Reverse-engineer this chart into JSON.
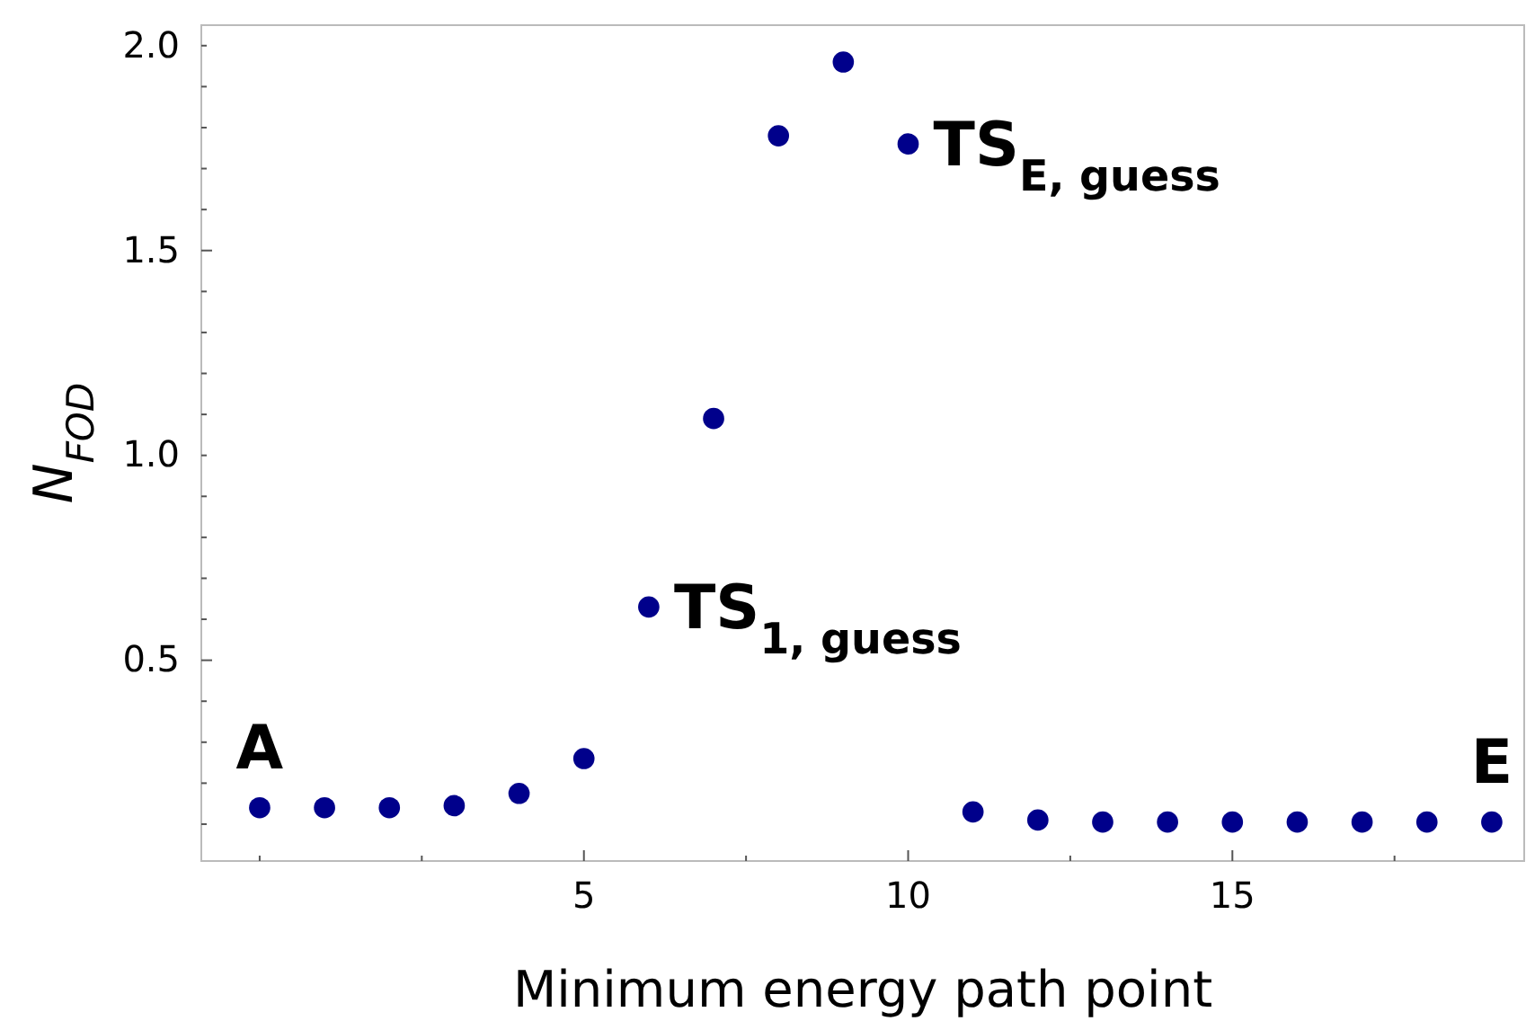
{
  "chart_data": {
    "type": "scatter",
    "xlabel": "Minimum energy path point",
    "ylabel": "N$_{FOD}$",
    "x": [
      0,
      1,
      2,
      3,
      4,
      5,
      6,
      7,
      8,
      9,
      10,
      11,
      12,
      13,
      14,
      15,
      16,
      17,
      18,
      19
    ],
    "series": [
      {
        "color": "#00008b",
        "values": [
          0.14,
          0.14,
          0.14,
          0.145,
          0.175,
          0.26,
          0.63,
          1.09,
          1.78,
          1.96,
          1.76,
          0.13,
          0.11,
          0.105,
          0.105,
          0.105,
          0.105,
          0.105,
          0.105,
          0.105
        ]
      }
    ],
    "marker": "circle",
    "xlim": [
      -0.9,
      19.5
    ],
    "ylim": [
      0.01,
      2.05
    ],
    "xticks": [
      {
        "value": 0,
        "label": null
      },
      {
        "value": 2.5,
        "label": null
      },
      5,
      {
        "value": 7.5,
        "label": null
      },
      10,
      {
        "value": 12.5,
        "label": null
      },
      15,
      {
        "value": 17.5,
        "label": null
      }
    ],
    "yticks": [
      {
        "value": 0.1,
        "label": null
      },
      {
        "value": 0.2,
        "label": null
      },
      {
        "value": 0.3,
        "label": null
      },
      {
        "value": 0.4,
        "label": null
      },
      0.5,
      {
        "value": 0.6,
        "label": null
      },
      {
        "value": 0.7,
        "label": null
      },
      {
        "value": 0.8,
        "label": null
      },
      {
        "value": 0.9,
        "label": null
      },
      {
        "value": 1,
        "label": "1.0"
      },
      {
        "value": 1.1,
        "label": null
      },
      {
        "value": 1.2,
        "label": null
      },
      {
        "value": 1.3,
        "label": null
      },
      {
        "value": 1.4,
        "label": null
      },
      1.5,
      {
        "value": 1.6,
        "label": null
      },
      {
        "value": 1.7,
        "label": null
      },
      {
        "value": 1.8,
        "label": null
      },
      {
        "value": 1.9,
        "label": null
      },
      {
        "value": 2,
        "label": "2.0"
      }
    ],
    "grid": false,
    "annotations": [
      {
        "text": "A",
        "x": 0,
        "y": 0.14
      },
      {
        "text": "E",
        "x": 19,
        "y": 0.105
      },
      {
        "text": "TS$_{1, guess}$",
        "x": 6,
        "y": 0.63
      },
      {
        "text": "TS$_{E, guess}$",
        "x": 10,
        "y": 1.76
      }
    ]
  }
}
